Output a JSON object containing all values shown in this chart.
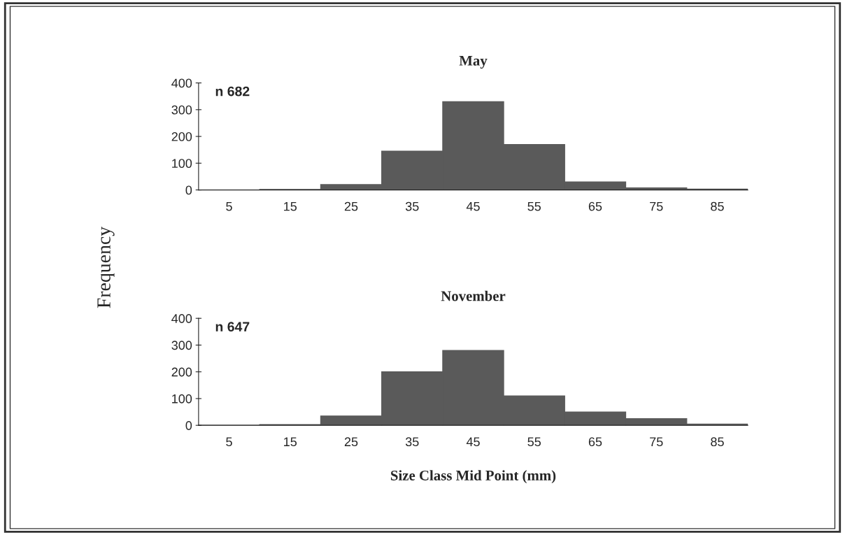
{
  "chart_data": [
    {
      "type": "histogram",
      "title": "May",
      "ylabel": "Frequency",
      "bins": [
        0,
        10,
        20,
        30,
        40,
        50,
        60,
        70,
        80,
        90
      ],
      "values": [
        0,
        2,
        20,
        145,
        330,
        170,
        30,
        8,
        3
      ],
      "color": "#5a5a5a",
      "xlim": [
        0,
        90
      ],
      "xticks": [
        5,
        15,
        25,
        35,
        45,
        55,
        65,
        75,
        85
      ],
      "ylim": [
        0,
        400
      ],
      "yticks": [
        0,
        100,
        200,
        300,
        400
      ],
      "annotations": [
        "n 682"
      ],
      "grid": false
    },
    {
      "type": "histogram",
      "title": "November",
      "xlabel": "Size Class Mid Point (mm)",
      "bins": [
        0,
        10,
        20,
        30,
        40,
        50,
        60,
        70,
        80,
        90
      ],
      "values": [
        0,
        3,
        35,
        200,
        280,
        110,
        50,
        25,
        5
      ],
      "color": "#5a5a5a",
      "xlim": [
        0,
        90
      ],
      "xticks": [
        5,
        15,
        25,
        35,
        45,
        55,
        65,
        75,
        85
      ],
      "ylim": [
        0,
        400
      ],
      "yticks": [
        0,
        100,
        200,
        300,
        400
      ],
      "annotations": [
        "n 647"
      ],
      "grid": false
    }
  ]
}
